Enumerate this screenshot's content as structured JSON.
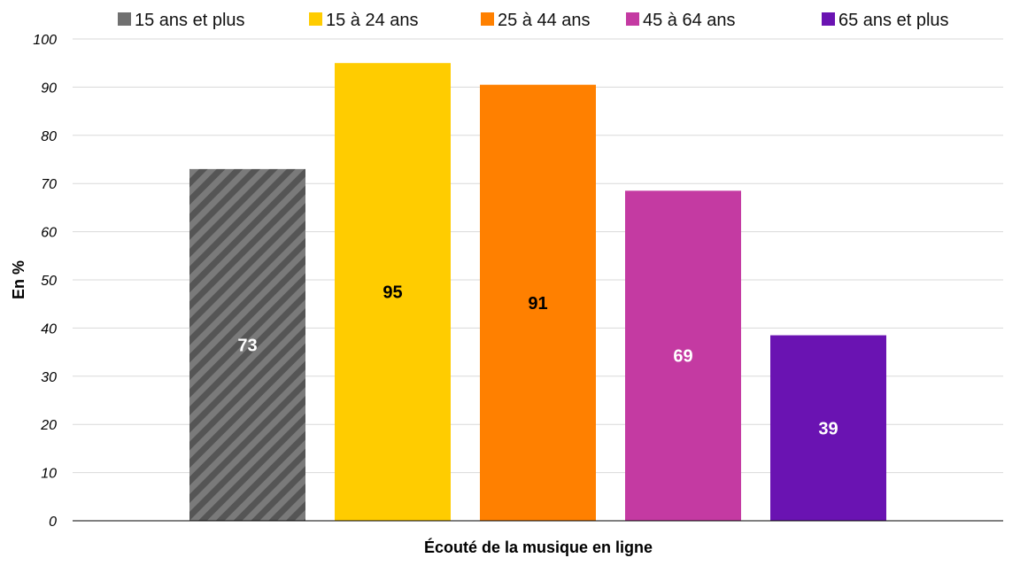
{
  "chart_data": {
    "type": "bar",
    "title": "",
    "xlabel": "Écouté de la musique en ligne",
    "ylabel": "En %",
    "ylim": [
      0,
      100
    ],
    "yticks": [
      0,
      10,
      20,
      30,
      40,
      50,
      60,
      70,
      80,
      90,
      100
    ],
    "grid": true,
    "legend_position": "top",
    "categories": [
      "Écouté de la musique en ligne"
    ],
    "series": [
      {
        "name": "15 ans et plus",
        "values": [
          73
        ],
        "label": "73",
        "color": "#707070",
        "label_color": "#ffffff",
        "pattern": "diagonal-stripes"
      },
      {
        "name": "15 à 24 ans",
        "values": [
          95
        ],
        "label": "95",
        "color": "#FFCC00",
        "label_color": "#000000"
      },
      {
        "name": "25 à 44 ans",
        "values": [
          90.5
        ],
        "label": "91",
        "color": "#FF8000",
        "label_color": "#000000"
      },
      {
        "name": "45 à 64 ans",
        "values": [
          68.5
        ],
        "label": "69",
        "color": "#C43AA2",
        "label_color": "#ffffff"
      },
      {
        "name": "65 ans et plus",
        "values": [
          38.5
        ],
        "label": "39",
        "color": "#6A13B2",
        "label_color": "#ffffff"
      }
    ]
  }
}
